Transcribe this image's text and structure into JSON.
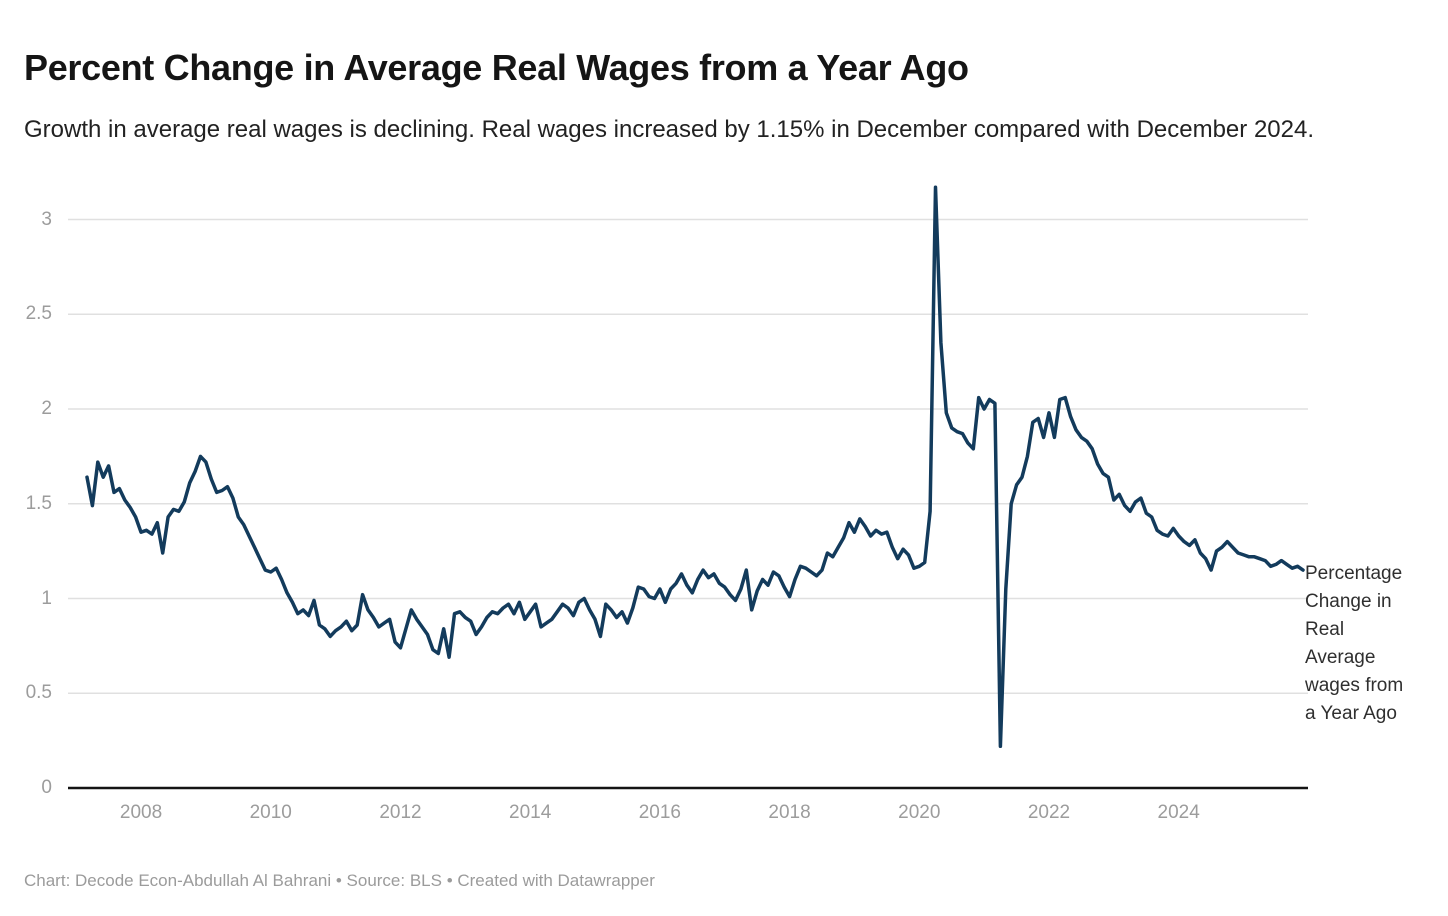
{
  "header": {
    "title": "Percent Change in Average Real Wages from a Year Ago",
    "subtitle": "Growth in average real wages is declining. Real wages increased by 1.15% in December compared with December 2024."
  },
  "annotation": {
    "text": "Percentage Change in Real Average wages from a Year Ago"
  },
  "footer": {
    "text": "Chart: Decode Econ-Abdullah Al Bahrani • Source: BLS • Created with Datawrapper"
  },
  "colors": {
    "line": "#133B5C",
    "grid": "#E0E0E0",
    "axis": "#141414",
    "tick_label": "#9C9C9C"
  },
  "chart_data": {
    "type": "line",
    "title": "Percent Change in Average Real Wages from a Year Ago",
    "xlabel": "",
    "ylabel": "Percentage Change in Real Average wages from a Year Ago",
    "frequency": "monthly",
    "x_start": "2007-03",
    "x_end": "2025-12",
    "ylim": [
      0,
      3.17
    ],
    "grid": "horizontal",
    "legend_position": "right-annotation",
    "y_ticks": [
      0,
      0.5,
      1,
      1.5,
      2,
      2.5,
      3
    ],
    "y_tick_labels": [
      "0",
      "0.5",
      "1",
      "1.5",
      "2",
      "2.5",
      "3"
    ],
    "x_tick_years": [
      2008,
      2010,
      2012,
      2014,
      2016,
      2018,
      2020,
      2022,
      2024
    ],
    "x_tick_labels": [
      "2008",
      "2010",
      "2012",
      "2014",
      "2016",
      "2018",
      "2020",
      "2022",
      "2024"
    ],
    "series_name": "Percentage Change in Real Average wages from a Year Ago",
    "key_points": {
      "covid_spike_2020_04": 3.17,
      "crash_2021_04": 0.22,
      "latest_2025_12": 1.15
    },
    "values": [
      1.64,
      1.49,
      1.72,
      1.64,
      1.7,
      1.56,
      1.58,
      1.52,
      1.48,
      1.43,
      1.35,
      1.36,
      1.34,
      1.4,
      1.24,
      1.43,
      1.47,
      1.46,
      1.51,
      1.61,
      1.67,
      1.75,
      1.72,
      1.63,
      1.56,
      1.57,
      1.59,
      1.53,
      1.43,
      1.39,
      1.33,
      1.27,
      1.21,
      1.15,
      1.14,
      1.16,
      1.1,
      1.03,
      0.98,
      0.92,
      0.94,
      0.91,
      0.99,
      0.86,
      0.84,
      0.8,
      0.83,
      0.85,
      0.88,
      0.83,
      0.86,
      1.02,
      0.94,
      0.9,
      0.85,
      0.87,
      0.89,
      0.77,
      0.74,
      0.84,
      0.94,
      0.89,
      0.85,
      0.81,
      0.73,
      0.71,
      0.84,
      0.69,
      0.92,
      0.93,
      0.9,
      0.88,
      0.81,
      0.85,
      0.9,
      0.93,
      0.92,
      0.95,
      0.97,
      0.92,
      0.98,
      0.89,
      0.93,
      0.97,
      0.85,
      0.87,
      0.89,
      0.93,
      0.97,
      0.95,
      0.91,
      0.98,
      1.0,
      0.94,
      0.89,
      0.8,
      0.97,
      0.94,
      0.9,
      0.93,
      0.87,
      0.95,
      1.06,
      1.05,
      1.01,
      1.0,
      1.05,
      0.98,
      1.05,
      1.08,
      1.13,
      1.07,
      1.03,
      1.1,
      1.15,
      1.11,
      1.13,
      1.08,
      1.06,
      1.02,
      0.99,
      1.05,
      1.15,
      0.94,
      1.04,
      1.1,
      1.07,
      1.14,
      1.12,
      1.06,
      1.01,
      1.1,
      1.17,
      1.16,
      1.14,
      1.12,
      1.15,
      1.24,
      1.22,
      1.27,
      1.32,
      1.4,
      1.35,
      1.42,
      1.38,
      1.33,
      1.36,
      1.34,
      1.35,
      1.27,
      1.21,
      1.26,
      1.23,
      1.16,
      1.17,
      1.19,
      1.46,
      3.17,
      2.35,
      1.98,
      1.9,
      1.88,
      1.87,
      1.82,
      1.79,
      2.06,
      2.0,
      2.05,
      2.03,
      0.22,
      1.05,
      1.5,
      1.6,
      1.64,
      1.75,
      1.93,
      1.95,
      1.85,
      1.98,
      1.85,
      2.05,
      2.06,
      1.96,
      1.89,
      1.85,
      1.83,
      1.79,
      1.71,
      1.66,
      1.64,
      1.52,
      1.55,
      1.49,
      1.46,
      1.51,
      1.53,
      1.45,
      1.43,
      1.36,
      1.34,
      1.33,
      1.37,
      1.33,
      1.3,
      1.28,
      1.31,
      1.24,
      1.21,
      1.15,
      1.25,
      1.27,
      1.3,
      1.27,
      1.24,
      1.23,
      1.22,
      1.22,
      1.21,
      1.2,
      1.17,
      1.18,
      1.2,
      1.18,
      1.16,
      1.17,
      1.15
    ]
  }
}
